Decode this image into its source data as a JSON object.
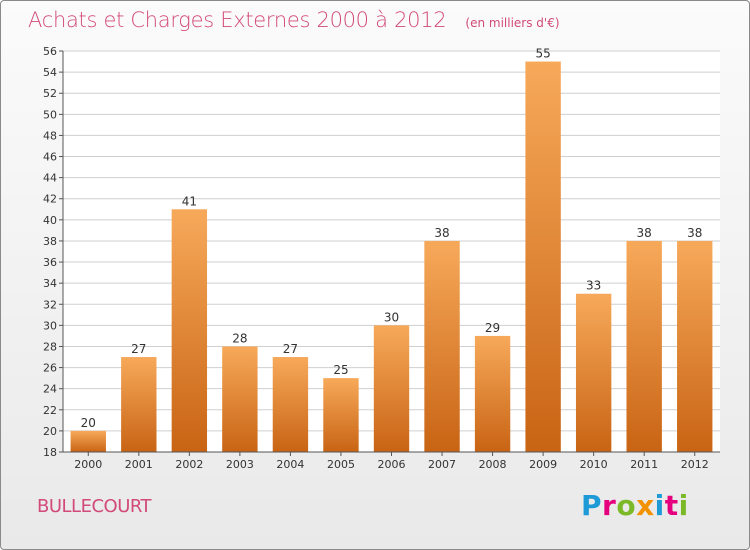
{
  "header": {
    "title": "Achats et Charges Externes 2000 à 2012",
    "subtitle": "(en milliers d'€)"
  },
  "footer": {
    "commune": "BULLECOURT",
    "logo": [
      "P",
      "r",
      "o",
      "x",
      "i",
      "t",
      "i"
    ],
    "logo_colors": [
      "#1e9ad6",
      "#e5007e",
      "#7cb928",
      "#f39200",
      "#1e9ad6",
      "#e5007e",
      "#7cb928"
    ]
  },
  "colors": {
    "bar_top": "#f7a95a",
    "bar_bottom": "#c86414",
    "accent": "#d24a7a",
    "grid": "#cfcfcf"
  },
  "chart_data": {
    "type": "bar",
    "title": "Achats et Charges Externes 2000 à 2012",
    "subtitle": "(en milliers d'€)",
    "categories": [
      "2000",
      "2001",
      "2002",
      "2003",
      "2004",
      "2005",
      "2006",
      "2007",
      "2008",
      "2009",
      "2010",
      "2011",
      "2012"
    ],
    "values": [
      20,
      27,
      41,
      28,
      27,
      25,
      30,
      38,
      29,
      55,
      33,
      38,
      38
    ],
    "ylim": [
      18,
      56
    ],
    "ytick_step": 2,
    "grid": true,
    "legend": "none"
  }
}
